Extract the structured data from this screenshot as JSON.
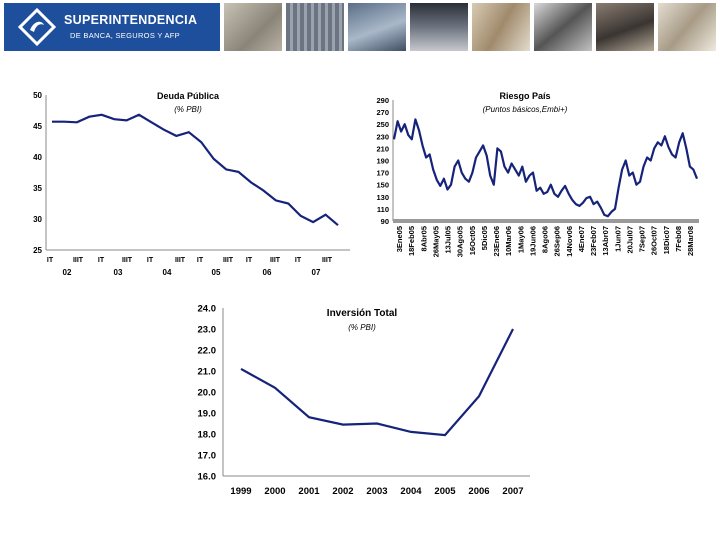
{
  "header": {
    "logo_title": "SUPERINTENDENCIA",
    "logo_subtitle": "DE BANCA, SEGUROS Y AFP",
    "photos": [
      "credit-card-photo",
      "building-photo",
      "keyboard-photo",
      "atm-photo",
      "handshake-photo",
      "cards-photo",
      "pos-terminal-photo",
      "businessman-photo",
      "signing-photo"
    ],
    "colors": {
      "brand": "#1d4f9c",
      "series": "#16237a"
    }
  },
  "chart_data": [
    {
      "id": "deuda",
      "type": "line",
      "title": "Deuda Pública",
      "subtitle": "(% PBI)",
      "ylim": [
        25,
        50
      ],
      "yticks": [
        "25",
        "30",
        "35",
        "40",
        "45",
        "50"
      ],
      "quarter_labels": [
        "IT",
        "IIIT",
        "IT",
        "IIIT",
        "IT",
        "IIIT",
        "IT",
        "IIIT",
        "IT",
        "IIIT",
        "IT",
        "IIIT"
      ],
      "year_labels": [
        "02",
        "03",
        "04",
        "05",
        "06",
        "07"
      ],
      "x": [
        "2002Q1",
        "2002Q2",
        "2002Q3",
        "2002Q4",
        "2003Q1",
        "2003Q2",
        "2003Q3",
        "2003Q4",
        "2004Q1",
        "2004Q2",
        "2004Q3",
        "2004Q4",
        "2005Q1",
        "2005Q2",
        "2005Q3",
        "2005Q4",
        "2006Q1",
        "2006Q2",
        "2006Q3",
        "2006Q4",
        "2007Q1",
        "2007Q2",
        "2007Q3",
        "2007Q4"
      ],
      "values": [
        45.7,
        45.7,
        45.6,
        46.5,
        46.8,
        46.1,
        45.9,
        46.8,
        45.6,
        44.4,
        43.4,
        44.0,
        42.4,
        39.7,
        38.0,
        37.6,
        35.9,
        34.6,
        33.0,
        32.5,
        30.5,
        29.5,
        30.7,
        29.0
      ]
    },
    {
      "id": "riesgo",
      "type": "line",
      "title": "Riesgo País",
      "subtitle": "(Puntos básicos,Embi+)",
      "ylim": [
        90,
        290
      ],
      "yticks": [
        "90",
        "110",
        "130",
        "150",
        "170",
        "190",
        "210",
        "230",
        "250",
        "270",
        "290"
      ],
      "x_labels": [
        "3Ene05",
        "18Feb05",
        "8Abr05",
        "26May05",
        "13Jul05",
        "30Ago05",
        "16Oct05",
        "5Dic05",
        "23Ene06",
        "10Mar06",
        "1May06",
        "19Jun06",
        "8Ago06",
        "26Sep06",
        "14Nov06",
        "4Ene07",
        "23Feb07",
        "13Abr07",
        "1Jun07",
        "20Jul07",
        "7Sep07",
        "26Oct07",
        "18Dic07",
        "7Feb08",
        "28Mar08"
      ],
      "values": [
        225,
        255,
        238,
        250,
        232,
        225,
        258,
        240,
        215,
        195,
        200,
        175,
        158,
        148,
        160,
        142,
        150,
        180,
        190,
        170,
        160,
        155,
        170,
        195,
        205,
        215,
        198,
        165,
        150,
        210,
        205,
        180,
        170,
        185,
        175,
        165,
        180,
        155,
        165,
        170,
        140,
        145,
        135,
        138,
        150,
        135,
        130,
        140,
        148,
        135,
        125,
        118,
        115,
        120,
        128,
        130,
        118,
        122,
        112,
        100,
        98,
        105,
        110,
        145,
        175,
        190,
        165,
        170,
        150,
        155,
        180,
        195,
        190,
        210,
        220,
        215,
        230,
        212,
        200,
        195,
        220,
        235,
        210,
        180,
        175,
        160
      ]
    },
    {
      "id": "inversion",
      "type": "line",
      "title": "Inversión Total",
      "subtitle": "(% PBI)",
      "ylim": [
        16,
        24
      ],
      "yticks": [
        "16.0",
        "17.0",
        "18.0",
        "19.0",
        "20.0",
        "21.0",
        "22.0",
        "23.0",
        "24.0"
      ],
      "categories": [
        "1999",
        "2000",
        "2001",
        "2002",
        "2003",
        "2004",
        "2005",
        "2006",
        "2007"
      ],
      "values": [
        21.1,
        20.2,
        18.8,
        18.45,
        18.5,
        18.1,
        17.95,
        19.8,
        23.0
      ]
    }
  ]
}
